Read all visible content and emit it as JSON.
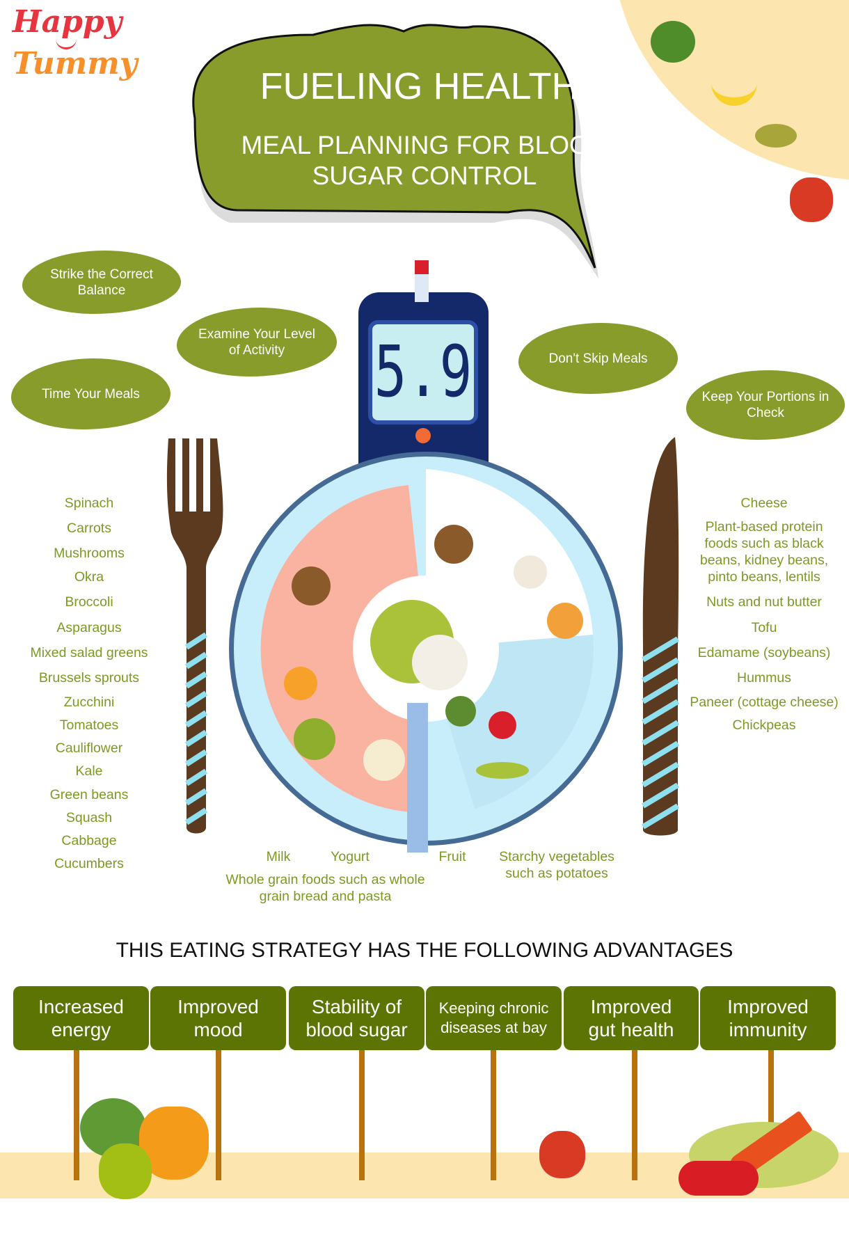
{
  "logo": {
    "line1": "Happy",
    "line2": "Tummy"
  },
  "header": {
    "title": "FUELING HEALTH:",
    "subtitle": "MEAL PLANNING FOR BLOOD SUGAR CONTROL"
  },
  "tips": [
    "Strike the Correct Balance",
    "Examine Your Level of Activity",
    "Time Your Meals",
    "Don't Skip Meals",
    "Keep Your Portions in Check"
  ],
  "meter": {
    "reading": "5.9"
  },
  "left_list": [
    "Spinach",
    "Carrots",
    "Mushrooms",
    "Okra",
    "Broccoli",
    "Asparagus",
    "Mixed salad greens",
    "Brussels sprouts",
    "Zucchini",
    "Tomatoes",
    "Cauliflower",
    "Kale",
    "Green beans",
    "Squash",
    "Cabbage",
    "Cucumbers"
  ],
  "right_list": [
    "Cheese",
    "Plant-based protein foods such as black beans, kidney beans, pinto beans, lentils",
    "Nuts and nut butter",
    "Tofu",
    "Edamame (soybeans)",
    "Hummus",
    "Paneer (cottage cheese)",
    "Chickpeas"
  ],
  "bottom_labels": {
    "milk": "Milk",
    "yogurt": "Yogurt",
    "fruit": "Fruit",
    "starchy": "Starchy vegetables such as potatoes",
    "grains": "Whole grain foods such as whole grain bread and pasta"
  },
  "advantages": {
    "heading": "THIS EATING STRATEGY HAS THE FOLLOWING ADVANTAGES",
    "items": [
      "Increased energy",
      "Improved mood",
      "Stability of blood sugar",
      "Keeping chronic diseases at bay",
      "Improved gut health",
      "Improved immunity"
    ]
  },
  "colors": {
    "bubble": "#889c2c",
    "text_green": "#7c9a22",
    "box": "#5b7403",
    "pole": "#b8720e",
    "ground": "#fde5b0",
    "logo_red": "#e8343e",
    "logo_orange": "#f7902a"
  }
}
